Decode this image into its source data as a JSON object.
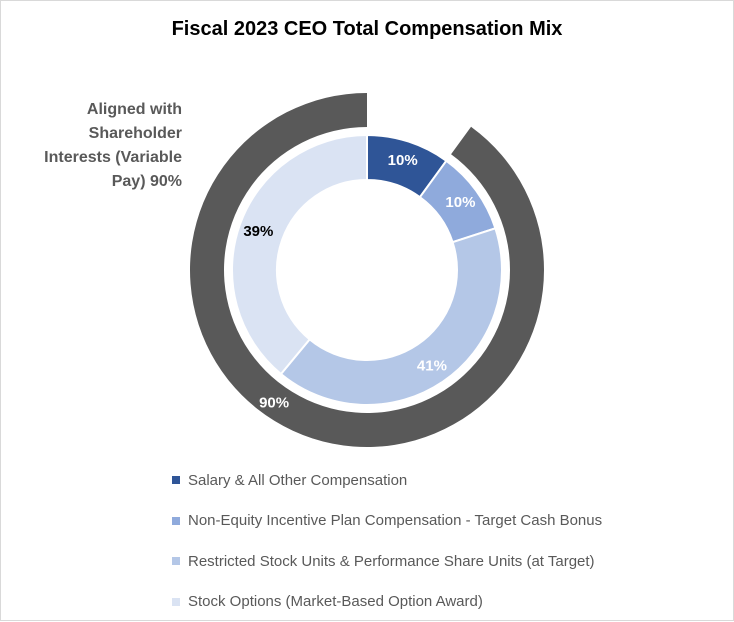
{
  "chart_data": {
    "type": "pie",
    "subtype": "doughnut",
    "title": "Fiscal 2023 CEO Total Compensation Mix",
    "inner_ring": {
      "slices": [
        {
          "label": "Salary & All Other Compensation",
          "value": 10,
          "display": "10%",
          "color": "#2f5597",
          "label_color": "#ffffff"
        },
        {
          "label": "Non-Equity Incentive Plan Compensation - Target Cash Bonus",
          "value": 10,
          "display": "10%",
          "color": "#8faadc",
          "label_color": "#ffffff"
        },
        {
          "label": "Restricted Stock Units & Performance Share Units (at Target)",
          "value": 41,
          "display": "41%",
          "color": "#b4c7e7",
          "label_color": "#ffffff"
        },
        {
          "label": "Stock Options (Market-Based Option Award)",
          "value": 39,
          "display": "39%",
          "color": "#dae3f3",
          "label_color": "#000000"
        }
      ]
    },
    "outer_ring": {
      "value": 90,
      "display": "90%",
      "color": "#595959",
      "label_color": "#ffffff",
      "annotation": "Aligned with Shareholder Interests (Variable Pay) 90%"
    },
    "legend_position": "bottom"
  }
}
